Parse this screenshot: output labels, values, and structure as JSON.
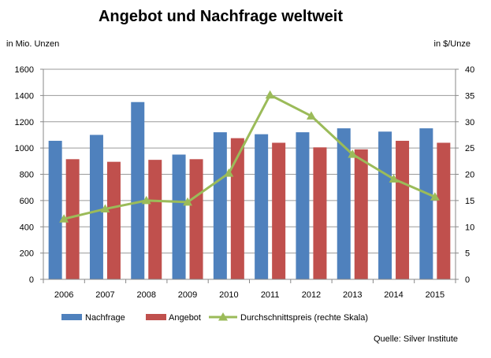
{
  "chart_data": {
    "type": "bar+line",
    "title": "Angebot und Nachfrage weltweit",
    "left_axis_label": "in Mio. Unzen",
    "right_axis_label": "in $/Unze",
    "categories": [
      "2006",
      "2007",
      "2008",
      "2009",
      "2010",
      "2011",
      "2012",
      "2013",
      "2014",
      "2015"
    ],
    "left_ylim": [
      0,
      1600
    ],
    "left_ticks": [
      "0",
      "200",
      "400",
      "600",
      "800",
      "1000",
      "1200",
      "1400",
      "1600"
    ],
    "right_ylim": [
      0,
      40
    ],
    "right_ticks": [
      "0",
      "5",
      "10",
      "15",
      "20",
      "25",
      "30",
      "35",
      "40"
    ],
    "grid": true,
    "series": [
      {
        "name": "Nachfrage",
        "type": "bar",
        "axis": "left",
        "color": "#4f81bd",
        "values": [
          1055,
          1100,
          1350,
          950,
          1120,
          1105,
          1120,
          1150,
          1125,
          1150
        ]
      },
      {
        "name": "Angebot",
        "type": "bar",
        "axis": "left",
        "color": "#c0504d",
        "values": [
          915,
          895,
          910,
          915,
          1075,
          1040,
          1005,
          990,
          1055,
          1040
        ]
      },
      {
        "name": "Durchschnittspreis (rechte Skala)",
        "type": "line",
        "axis": "right",
        "color": "#9bbb59",
        "values": [
          11.5,
          13.4,
          15.0,
          14.7,
          20.2,
          35.1,
          31.1,
          23.8,
          19.1,
          15.7
        ]
      }
    ],
    "source": "Quelle: Silver Institute"
  }
}
